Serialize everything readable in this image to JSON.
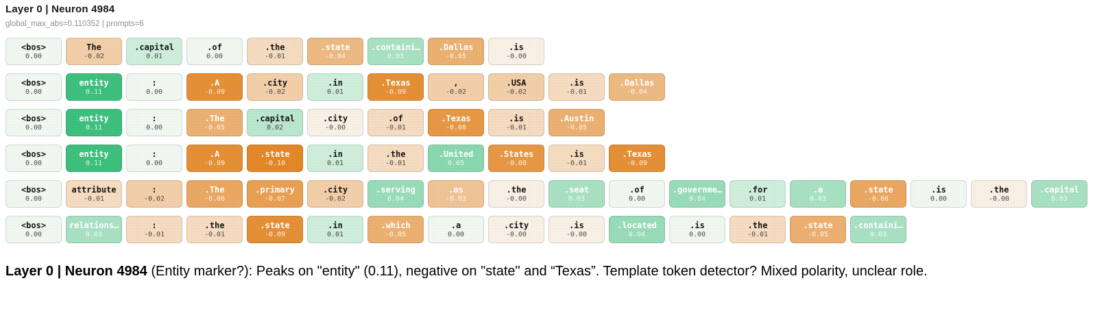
{
  "header": {
    "title": "Layer 0 | Neuron 4984",
    "subtitle": "global_max_abs=0.110352 | prompts=6"
  },
  "colors": {
    "pos_base": "#f1f8f2",
    "pos_end": "#3ec07e",
    "neg_base": "#faf1e6",
    "neg_end": "#e2811c",
    "text_dark": "#141414",
    "value_dark": "#4a4a4a",
    "text_light": "#ffffff"
  },
  "chart_data": {
    "type": "heatmap",
    "title": "Layer 0 | Neuron 4984",
    "subtitle": "global_max_abs=0.110352 | prompts=6",
    "global_max_abs": 0.110352,
    "prompts": 6,
    "colormap": {
      "positive": "green",
      "negative": "orange",
      "near_zero": "white"
    },
    "rows": [
      {
        "tokens": [
          "<bos>",
          "The",
          ".capital",
          ".of",
          ".the",
          ".state",
          ".containi…",
          ".Dallas",
          ".is"
        ],
        "values": [
          "0.00",
          "-0.02",
          "0.01",
          "0.00",
          "-0.01",
          "-0.04",
          "0.03",
          "-0.05",
          "-0.00"
        ]
      },
      {
        "tokens": [
          "<bos>",
          "entity",
          ":",
          ".A",
          ".city",
          ".in",
          ".Texas",
          ",",
          ".USA",
          ".is",
          ".Dallas"
        ],
        "values": [
          "0.00",
          "0.11",
          "0.00",
          "-0.09",
          "-0.02",
          "0.01",
          "-0.09",
          "-0.02",
          "-0.02",
          "-0.01",
          "-0.04"
        ]
      },
      {
        "tokens": [
          "<bos>",
          "entity",
          ":",
          ".The",
          ".capital",
          ".city",
          ".of",
          ".Texas",
          ".is",
          ".Austin"
        ],
        "values": [
          "0.00",
          "0.11",
          "0.00",
          "-0.05",
          "0.02",
          "-0.00",
          "-0.01",
          "-0.08",
          "-0.01",
          "-0.05"
        ]
      },
      {
        "tokens": [
          "<bos>",
          "entity",
          ":",
          ".A",
          ".state",
          ".in",
          ".the",
          ".United",
          ".States",
          ".is",
          ".Texas"
        ],
        "values": [
          "0.00",
          "0.11",
          "0.00",
          "-0.09",
          "-0.10",
          "0.01",
          "-0.01",
          "0.05",
          "-0.08",
          "-0.01",
          "-0.09"
        ]
      },
      {
        "tokens": [
          "<bos>",
          "attribute",
          ":",
          ".The",
          ".primary",
          ".city",
          ".serving",
          ".as",
          ".the",
          ".seat",
          ".of",
          ".governme…",
          ".for",
          ".a",
          ".state",
          ".is",
          ".the",
          ".capital"
        ],
        "values": [
          "0.00",
          "-0.01",
          "-0.02",
          "-0.06",
          "-0.07",
          "-0.02",
          "0.04",
          "-0.03",
          "-0.00",
          "0.03",
          "0.00",
          "0.04",
          "0.01",
          "0.03",
          "-0.06",
          "0.00",
          "-0.00",
          "0.03"
        ]
      },
      {
        "tokens": [
          "<bos>",
          "relations…",
          ":",
          ".the",
          ".state",
          ".in",
          ".which",
          ".a",
          ".city",
          ".is",
          ".located",
          ".is",
          ".the",
          ".state",
          ".containi…"
        ],
        "values": [
          "0.00",
          "0.03",
          "-0.01",
          "-0.01",
          "-0.09",
          "0.01",
          "-0.05",
          "0.00",
          "-0.00",
          "-0.00",
          "0.04",
          "0.00",
          "-0.01",
          "-0.05",
          "0.03"
        ]
      }
    ]
  },
  "caption": {
    "bold": "Layer 0 | Neuron 4984",
    "rest": " (Entity marker?): Peaks on \"entity\" (0.11), negative on \"state\" and “Texas”. Template token detector? Mixed polarity, unclear role."
  }
}
